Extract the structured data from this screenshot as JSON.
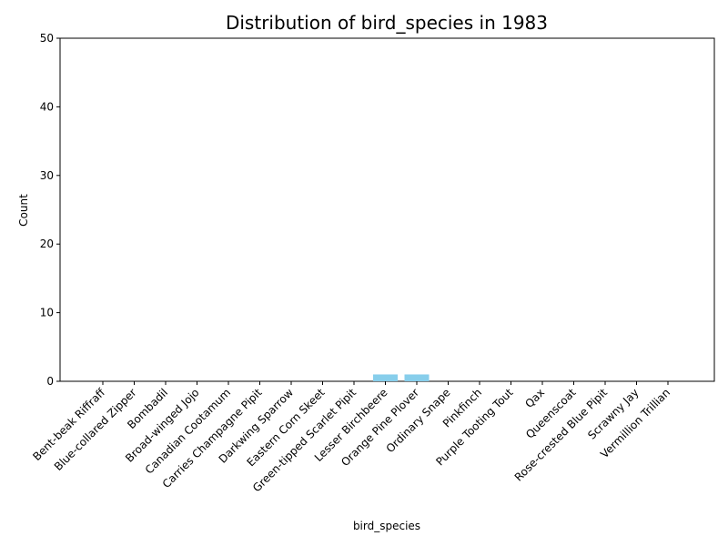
{
  "chart_data": {
    "type": "bar",
    "title": "Distribution of bird_species in 1983",
    "xlabel": "bird_species",
    "ylabel": "Count",
    "categories": [
      "Bent-beak Riffraff",
      "Blue-collared Zipper",
      "Bombadil",
      "Broad-winged Jojo",
      "Canadian Cootamum",
      "Carries Champagne Pipit",
      "Darkwing Sparrow",
      "Eastern Corn Skeet",
      "Green-tipped Scarlet Pipit",
      "Lesser Birchbeere",
      "Orange Pine Plover",
      "Ordinary Snape",
      "Pinkfinch",
      "Purple Tooting Tout",
      "Qax",
      "Queenscoat",
      "Rose-crested Blue Pipit",
      "Scrawny Jay",
      "Vermillion Trillian"
    ],
    "values": [
      0,
      0,
      0,
      0,
      0,
      0,
      0,
      0,
      0,
      1,
      1,
      0,
      0,
      0,
      0,
      0,
      0,
      0,
      0
    ],
    "ylim": [
      0,
      50
    ],
    "yticks": [
      0,
      10,
      20,
      30,
      40,
      50
    ],
    "bar_color": "#87CEEB",
    "grid": false,
    "legend": "none"
  }
}
